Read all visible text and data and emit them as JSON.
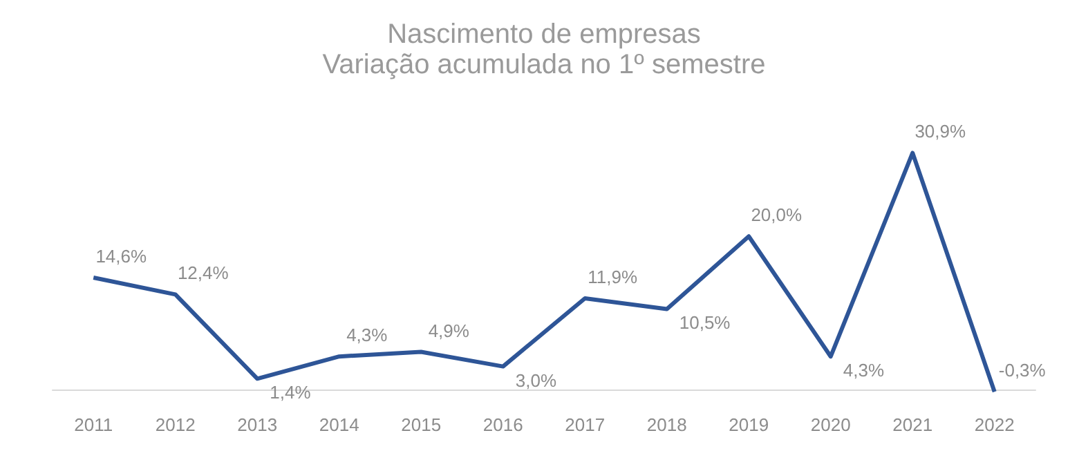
{
  "chart_data": {
    "type": "line",
    "title": "Nascimento de empresas",
    "subtitle": "Variação acumulada no 1º semestre",
    "categories": [
      "2011",
      "2012",
      "2013",
      "2014",
      "2015",
      "2016",
      "2017",
      "2018",
      "2019",
      "2020",
      "2021",
      "2022"
    ],
    "series": [
      {
        "color": "#2e5597",
        "values": [
          14.6,
          12.4,
          1.4,
          4.3,
          4.9,
          3.0,
          11.9,
          10.5,
          20.0,
          4.3,
          30.9,
          -0.3
        ],
        "value_labels": [
          "14,6%",
          "12,4%",
          "1,4%",
          "4,3%",
          "4,9%",
          "3,0%",
          "11,9%",
          "10,5%",
          "20,0%",
          "4,3%",
          "30,9%",
          "-0,3%"
        ]
      }
    ],
    "grid": false,
    "marker": "none",
    "line_style": "solid"
  }
}
